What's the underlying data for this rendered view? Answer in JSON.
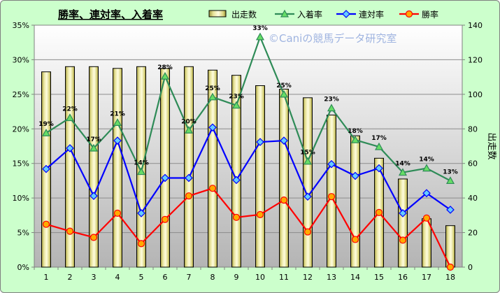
{
  "chart_data": {
    "type": "bar+line",
    "title": "勝率、連対率、入着率",
    "watermark": "©Caniの競馬データ研究室",
    "x": [
      "1",
      "2",
      "3",
      "4",
      "5",
      "6",
      "7",
      "8",
      "9",
      "10",
      "11",
      "12",
      "13",
      "14",
      "15",
      "16",
      "17",
      "18"
    ],
    "left_axis": {
      "ticks": [
        "0%",
        "5%",
        "10%",
        "15%",
        "20%",
        "25%",
        "30%",
        "35%"
      ],
      "ylim": [
        0,
        35
      ],
      "unit": "%"
    },
    "right_axis": {
      "label": "出走数",
      "ticks": [
        "0",
        "20",
        "40",
        "60",
        "80",
        "100",
        "120",
        "140"
      ],
      "ylim": [
        0,
        140
      ]
    },
    "series": [
      {
        "name": "出走数",
        "type": "bar",
        "axis": "right",
        "color": "#d8d27a",
        "values": [
          113,
          116,
          116,
          115,
          116,
          115,
          116,
          114,
          111,
          105,
          103,
          98,
          88,
          76,
          63,
          51,
          28,
          24
        ]
      },
      {
        "name": "入着率",
        "type": "line",
        "axis": "left",
        "color": "#2e8b57",
        "marker": "triangle",
        "values": [
          19.4,
          21.6,
          17.2,
          20.9,
          13.8,
          27.6,
          19.8,
          24.6,
          23.4,
          33.3,
          25.0,
          15.3,
          23.0,
          18.4,
          17.4,
          13.7,
          14.3,
          12.5
        ],
        "labels": [
          "19%",
          "22%",
          "17%",
          "21%",
          "14%",
          "28%",
          "20%",
          "25%",
          "23%",
          "33%",
          "25%",
          "15%",
          "23%",
          "18%",
          "17%",
          "14%",
          "14%",
          "13%"
        ]
      },
      {
        "name": "連対率",
        "type": "line",
        "axis": "left",
        "color": "#0000ff",
        "marker": "diamond",
        "values": [
          14.2,
          17.2,
          10.3,
          18.3,
          7.8,
          12.9,
          12.9,
          20.2,
          12.6,
          18.1,
          18.3,
          10.2,
          14.9,
          13.2,
          14.3,
          7.8,
          10.7,
          8.3
        ]
      },
      {
        "name": "勝率",
        "type": "line",
        "axis": "left",
        "color": "#ff0000",
        "marker": "circle",
        "values": [
          6.2,
          5.2,
          4.3,
          7.8,
          3.4,
          6.9,
          10.3,
          11.4,
          7.2,
          7.6,
          9.7,
          5.1,
          10.2,
          4.0,
          7.9,
          3.9,
          7.1,
          0.0
        ]
      }
    ],
    "legend_position": "top",
    "grid": true
  }
}
